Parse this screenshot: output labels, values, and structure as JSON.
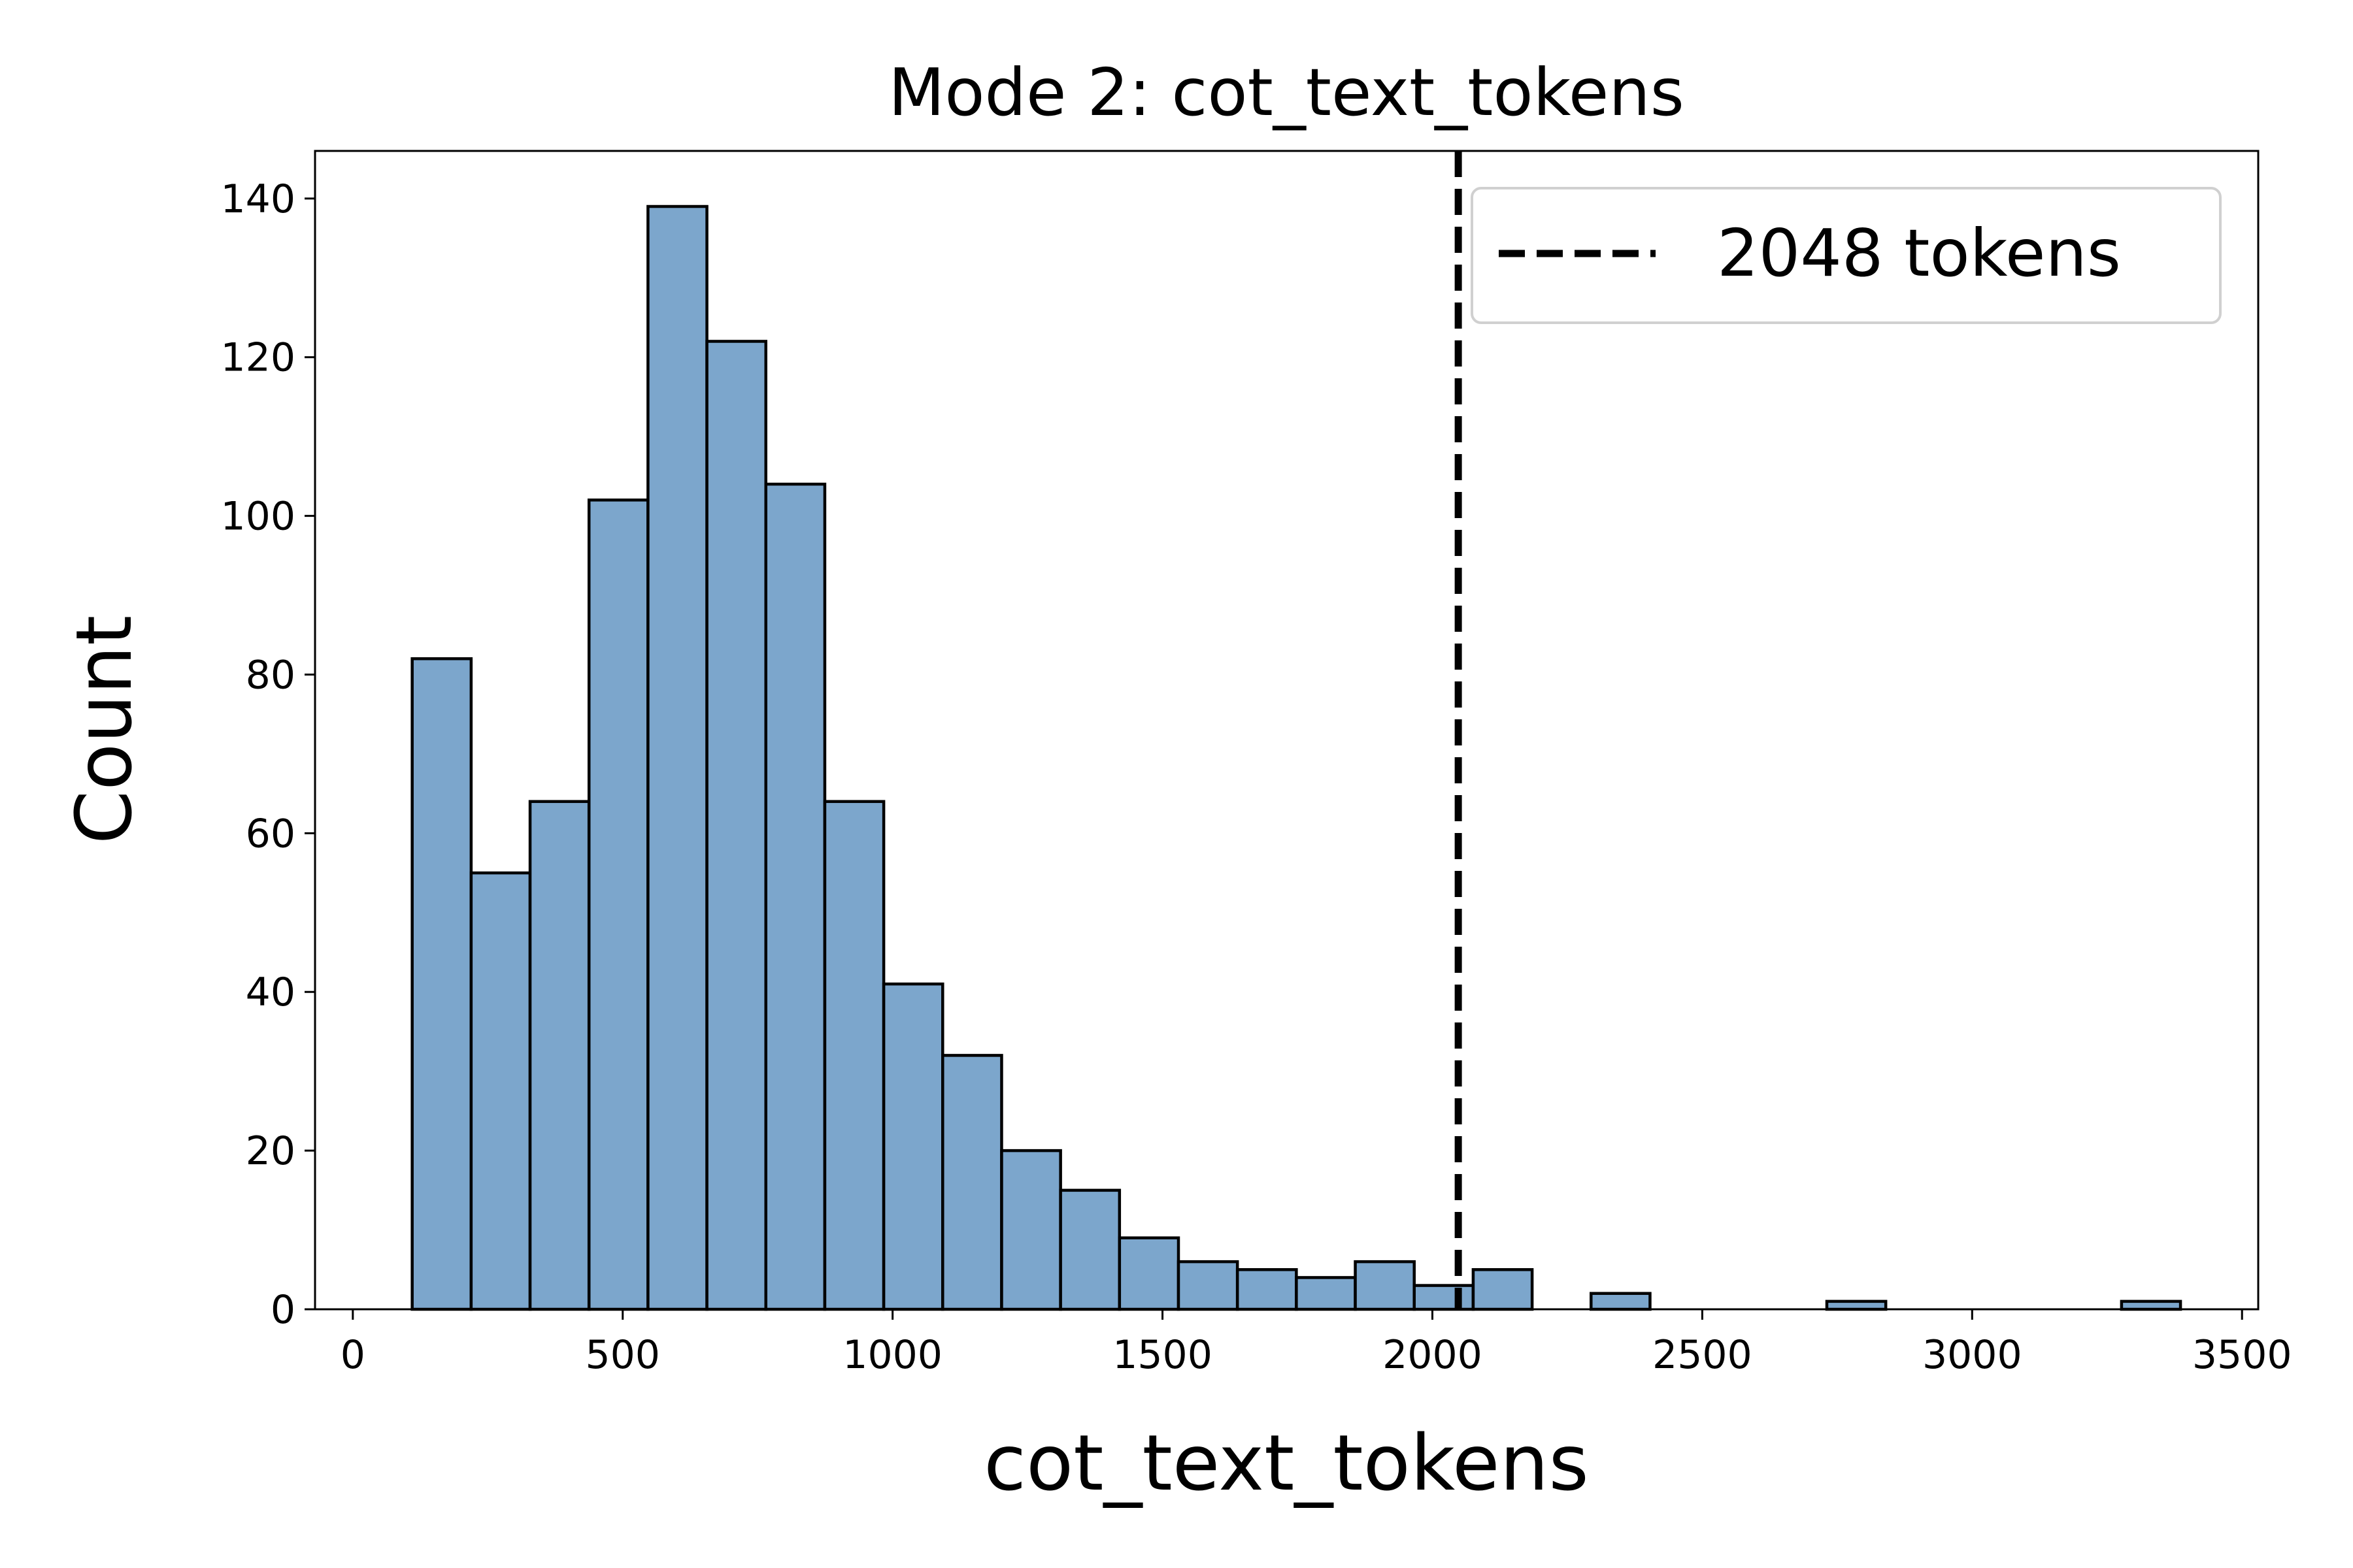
{
  "chart_data": {
    "type": "bar",
    "title": "Mode 2: cot_text_tokens",
    "xlabel": "cot_text_tokens",
    "ylabel": "Count",
    "xlim": [
      -70,
      3530
    ],
    "ylim": [
      0,
      146
    ],
    "xticks": [
      0,
      500,
      1000,
      1500,
      2000,
      2500,
      3000,
      3500
    ],
    "yticks": [
      0,
      20,
      40,
      60,
      80,
      100,
      120,
      140
    ],
    "grid": false,
    "legend_position": "top-right",
    "bin_edges": [
      110,
      219.2,
      328.4,
      437.6,
      546.8,
      656,
      765.2,
      874.4,
      983.6,
      1092.8,
      1202,
      1311.2,
      1420.4,
      1529.6,
      1638.8,
      1748,
      1857.2,
      1966.4,
      2075.6,
      2184.8,
      2294,
      2403.2,
      2512.4,
      2621.6,
      2730.8,
      2840,
      2949.2,
      3058.4,
      3167.6,
      3276.8,
      3386
    ],
    "counts": [
      82,
      55,
      64,
      102,
      139,
      122,
      104,
      64,
      41,
      32,
      20,
      15,
      9,
      6,
      5,
      4,
      6,
      3,
      5,
      0,
      2,
      0,
      0,
      0,
      1,
      0,
      0,
      0,
      0,
      1
    ],
    "reference_line": {
      "x": 2048,
      "label": "2048 tokens",
      "style": "dashed",
      "color": "#000000"
    },
    "bar_color": "#7ca6cc",
    "edge_color": "#000000"
  }
}
